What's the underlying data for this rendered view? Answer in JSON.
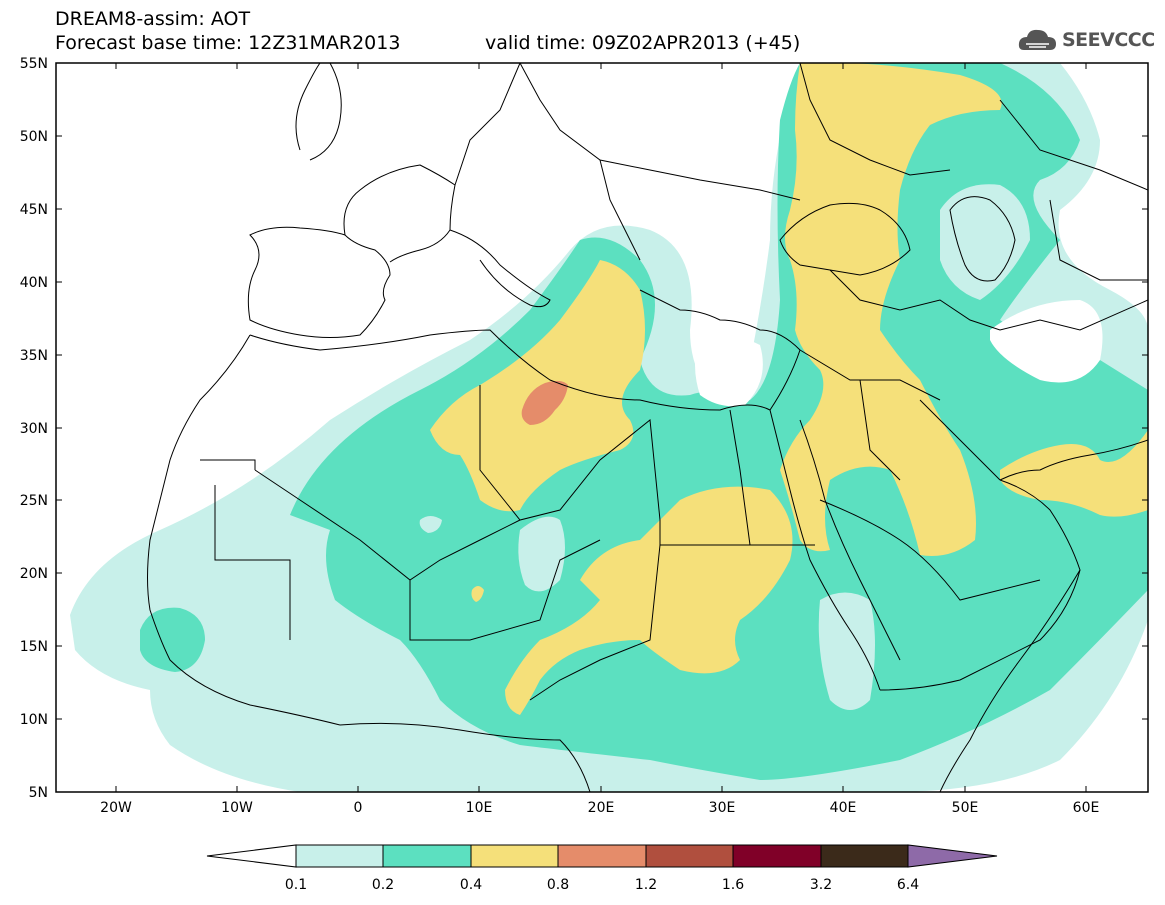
{
  "header": {
    "title": "DREAM8-assim: AOT",
    "base_time": "Forecast base time: 12Z31MAR2013",
    "valid_time": "valid time: 09Z02APR2013 (+45)",
    "logo_text": "SEEVCCC"
  },
  "map": {
    "lat_labels": [
      "55N",
      "50N",
      "45N",
      "40N",
      "35N",
      "30N",
      "25N",
      "20N",
      "15N",
      "10N",
      "5N"
    ],
    "lon_labels": [
      "20W",
      "10W",
      "0",
      "10E",
      "20E",
      "30E",
      "40E",
      "50E",
      "60E"
    ],
    "extent": {
      "lon_min": -25,
      "lon_max": 65,
      "lat_min": 5,
      "lat_max": 55
    },
    "colors": {
      "c01": "#c8f0ea",
      "c02": "#5ce0c0",
      "c04": "#f5e07a",
      "c08": "#e58c6a",
      "c12": "#b04f3e",
      "c16": "#a0212e",
      "c32": "#800028",
      "c64": "#3b2a1a",
      "over": "#8e6aa8"
    }
  },
  "colorbar": {
    "labels": [
      "0.1",
      "0.2",
      "0.4",
      "0.8",
      "1.2",
      "1.6",
      "3.2",
      "6.4"
    ],
    "colors": [
      "#c8f0ea",
      "#5ce0c0",
      "#f5e07a",
      "#e58c6a",
      "#b04f3e",
      "#800028",
      "#3b2a1a",
      "#8e6aa8"
    ]
  }
}
